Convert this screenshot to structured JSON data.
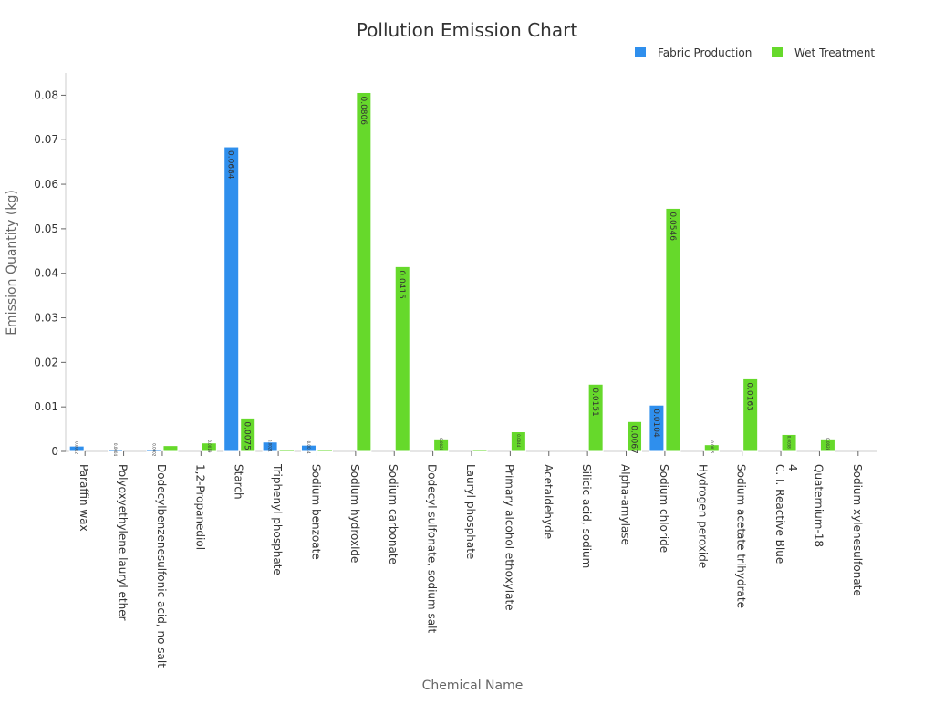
{
  "chart_data": {
    "type": "bar",
    "title": "Pollution Emission Chart",
    "xlabel": "Chemical Name",
    "ylabel": "Emission Quantity (kg)",
    "ylim": [
      0,
      0.085
    ],
    "yticks": [
      0,
      0.01,
      0.02,
      0.03,
      0.04,
      0.05,
      0.06,
      0.07,
      0.08
    ],
    "ytick_labels": [
      "0",
      "0.01",
      "0.02",
      "0.03",
      "0.04",
      "0.05",
      "0.06",
      "0.07",
      "0.08"
    ],
    "grid": false,
    "legend_position": "top-right",
    "categories": [
      "Paraffin wax",
      "Polyoxyethylene lauryl ether",
      "Dodecylbenzenesulfonic acid, no salt",
      "1,2-Propanediol",
      "Starch",
      "Triphenyl phosphate",
      "Sodium benzoate",
      "Sodium hydroxide",
      "Sodium carbonate",
      "Dodecyl sulfonate, sodium salt",
      "Lauryl phosphate",
      "Primary alcohol ethoxylate",
      "Acetaldehyde",
      "Silicic acid, sodium",
      "Alpha-amylase",
      "Sodium chloride",
      "Hydrogen peroxide",
      "Sodium acetate trihydrate",
      "C. I. Reactive Blue 4",
      "Quaternium-18",
      "Sodium xylenesulfonate"
    ],
    "category_label_lines": [
      [
        "Paraffin wax"
      ],
      [
        "Polyoxyethylene lauryl ether"
      ],
      [
        "Dodecylbenzenesulfonic acid, no salt"
      ],
      [
        "1,2-Propanediol"
      ],
      [
        "Starch"
      ],
      [
        "Triphenyl phosphate"
      ],
      [
        "Sodium benzoate"
      ],
      [
        "Sodium hydroxide"
      ],
      [
        "Sodium carbonate"
      ],
      [
        "Dodecyl sulfonate, sodium salt"
      ],
      [
        "Lauryl phosphate"
      ],
      [
        "Primary alcohol ethoxylate"
      ],
      [
        "Acetaldehyde"
      ],
      [
        "Silicic acid, sodium"
      ],
      [
        "Alpha-amylase"
      ],
      [
        "Sodium chloride"
      ],
      [
        "Hydrogen peroxide"
      ],
      [
        "Sodium acetate trihydrate"
      ],
      [
        "C. I. Reactive Blue",
        "4"
      ],
      [
        "Quaternium-18"
      ],
      [
        "Sodium xylenesulfonate"
      ]
    ],
    "series": [
      {
        "name": "Fabric Production",
        "color": "#2f8fed",
        "values": [
          0.0012,
          0.0004,
          0.0002,
          0,
          0.0684,
          0.0021,
          0.0014,
          0,
          0,
          0,
          0,
          0,
          0,
          0,
          0,
          0.0104,
          0,
          0,
          0,
          0,
          0
        ],
        "labels": [
          "0.0012",
          "0.0004",
          "0.0002",
          "",
          "0.0684",
          "0.0021",
          "0.0014",
          "",
          "",
          "",
          "",
          "",
          "",
          "",
          "",
          "0.0104",
          "",
          "",
          "",
          "",
          ""
        ]
      },
      {
        "name": "Wet Treatment",
        "color": "#66d92b",
        "values": [
          0,
          0,
          0.0013,
          0.0019,
          0.0075,
          0.0002,
          0.0002,
          0.0806,
          0.0415,
          0.0028,
          0.0002,
          0.0044,
          0,
          0.0151,
          0.0067,
          0.0546,
          0.0015,
          0.0163,
          0.0038,
          0.0028,
          0
        ],
        "labels": [
          "",
          "",
          "",
          "0.0019",
          "0.0075",
          "",
          "",
          "0.0806",
          "0.0415",
          "0.0028",
          "",
          "0.0044",
          "",
          "0.0151",
          "0.0067",
          "0.0546",
          "0.0015",
          "0.0163",
          "0.0038",
          "0.0028",
          ""
        ]
      }
    ]
  }
}
